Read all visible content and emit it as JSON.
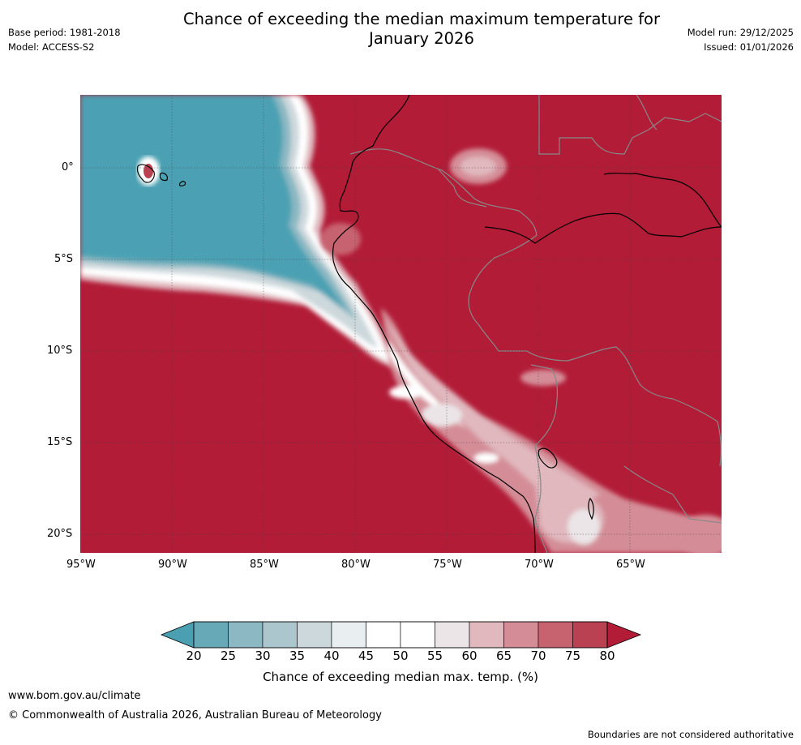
{
  "header": {
    "title_line1": "Chance of exceeding the median maximum temperature for",
    "title_line2": "January 2026",
    "base_period": "Base period: 1981-2018",
    "model": "Model: ACCESS-S2",
    "model_run": "Model run: 29/12/2025",
    "issued": "Issued: 01/01/2026"
  },
  "map": {
    "lat_labels": [
      "0°",
      "5°S",
      "10°S",
      "15°S",
      "20°S"
    ],
    "lon_labels": [
      "95°W",
      "90°W",
      "85°W",
      "80°W",
      "75°W",
      "70°W",
      "65°W"
    ],
    "colors": {
      "below": "#4ba1b3",
      "above": "#b21c37"
    }
  },
  "colorbar": {
    "ticks": [
      "20",
      "25",
      "30",
      "35",
      "40",
      "45",
      "50",
      "55",
      "60",
      "65",
      "70",
      "75",
      "80"
    ],
    "colors": [
      "#68a9b7",
      "#8bb8c3",
      "#acc6cd",
      "#cdd8dc",
      "#e9eff1",
      "#ffffff",
      "#ffffff",
      "#ebe5e7",
      "#e0b8be",
      "#d48d97",
      "#c7626f",
      "#b94151"
    ],
    "end_low_color": "#4a9fb0",
    "end_high_color": "#b21c37",
    "label": "Chance of exceeding median max. temp. (%)"
  },
  "footer": {
    "url": "www.bom.gov.au/climate",
    "copyright": "© Commonwealth of Australia 2026, Australian Bureau of Meteorology",
    "disclaimer": "Boundaries are not considered authoritative"
  }
}
